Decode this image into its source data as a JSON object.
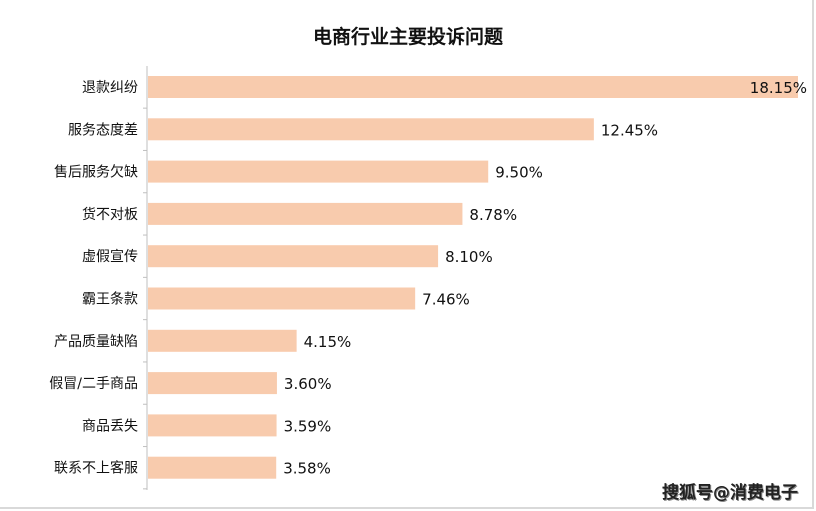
{
  "chart_data": {
    "type": "bar",
    "orientation": "horizontal",
    "title": "电商行业主要投诉问题",
    "categories": [
      "退款纠纷",
      "服务态度差",
      "售后服务欠缺",
      "货不对板",
      "虚假宣传",
      "霸王条款",
      "产品质量缺陷",
      "假冒/二手商品",
      "商品丢失",
      "联系不上客服"
    ],
    "values": [
      18.15,
      12.45,
      9.5,
      8.78,
      8.1,
      7.46,
      4.15,
      3.6,
      3.59,
      3.58
    ],
    "data_labels": [
      "18.15%",
      "12.45%",
      "9.50%",
      "8.78%",
      "8.10%",
      "7.46%",
      "4.15%",
      "3.60%",
      "3.59%",
      "3.58%"
    ],
    "xlim": [
      0,
      18.15
    ],
    "xlabel": "",
    "ylabel": "",
    "grid": false,
    "bar_color": "#F8CBAD"
  },
  "watermark": "搜狐号@消费电子"
}
